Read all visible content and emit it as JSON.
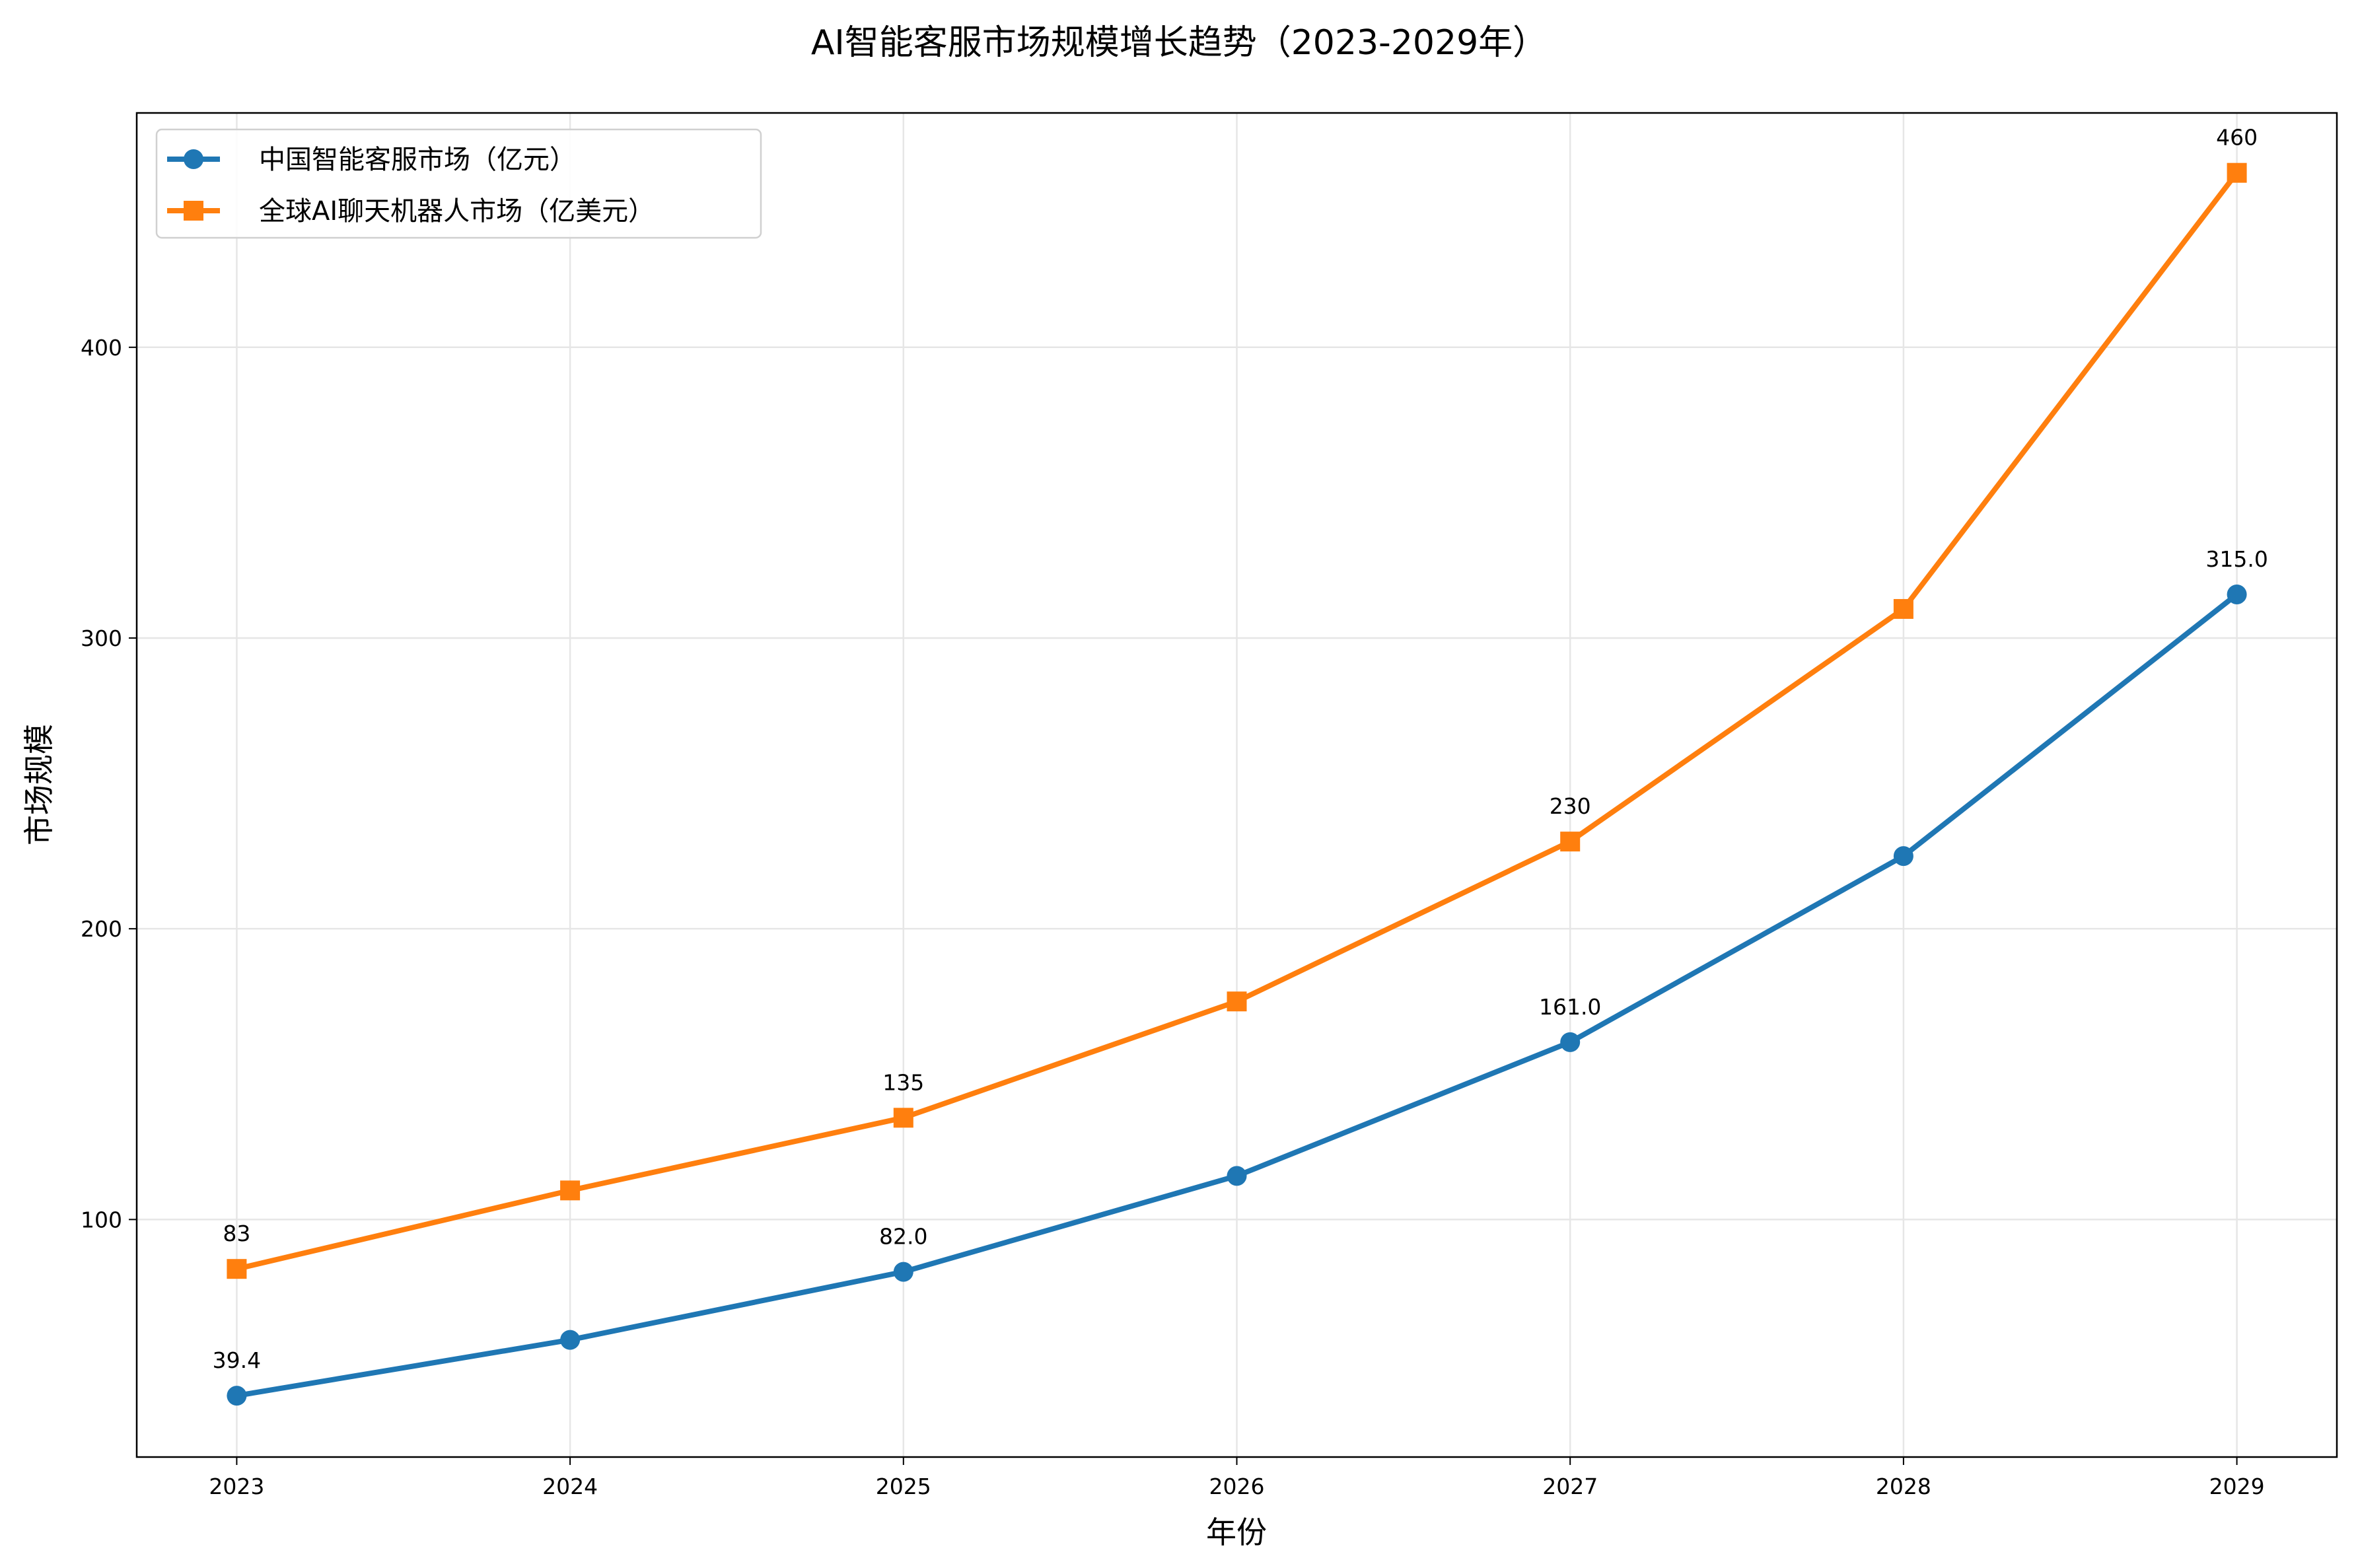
{
  "chart_data": {
    "type": "line",
    "title": "AI智能客服市场规模增长趋势（2023-2029年）",
    "xlabel": "年份",
    "ylabel": "市场规模",
    "x": [
      2023,
      2024,
      2025,
      2026,
      2027,
      2028,
      2029
    ],
    "xticks": [
      "2023",
      "2024",
      "2025",
      "2026",
      "2027",
      "2028",
      "2029"
    ],
    "yticks": [
      "100",
      "200",
      "300",
      "400"
    ],
    "ytick_values": [
      100,
      200,
      300,
      400
    ],
    "xlim": [
      2022.7,
      2029.3
    ],
    "ylim": [
      18.3,
      480.6
    ],
    "grid": true,
    "legend_placement": "upper-left",
    "series": [
      {
        "name": "中国智能客服市场（亿元）",
        "color": "#1f77b4",
        "marker": "circle",
        "values": [
          39.4,
          58.6,
          82.0,
          115.0,
          161.0,
          225.0,
          315.0
        ],
        "data_labels": [
          {
            "x": 2023,
            "y": 39.4,
            "text": "39.4"
          },
          {
            "x": 2025,
            "y": 82.0,
            "text": "82.0"
          },
          {
            "x": 2027,
            "y": 161.0,
            "text": "161.0"
          },
          {
            "x": 2029,
            "y": 315.0,
            "text": "315.0"
          }
        ]
      },
      {
        "name": "全球AI聊天机器人市场（亿美元）",
        "color": "#ff7f0e",
        "marker": "square",
        "values": [
          83,
          110,
          135,
          175,
          230,
          310,
          460
        ],
        "data_labels": [
          {
            "x": 2023,
            "y": 83,
            "text": "83"
          },
          {
            "x": 2025,
            "y": 135,
            "text": "135"
          },
          {
            "x": 2027,
            "y": 230,
            "text": "230"
          },
          {
            "x": 2029,
            "y": 460,
            "text": "460"
          }
        ]
      }
    ]
  }
}
